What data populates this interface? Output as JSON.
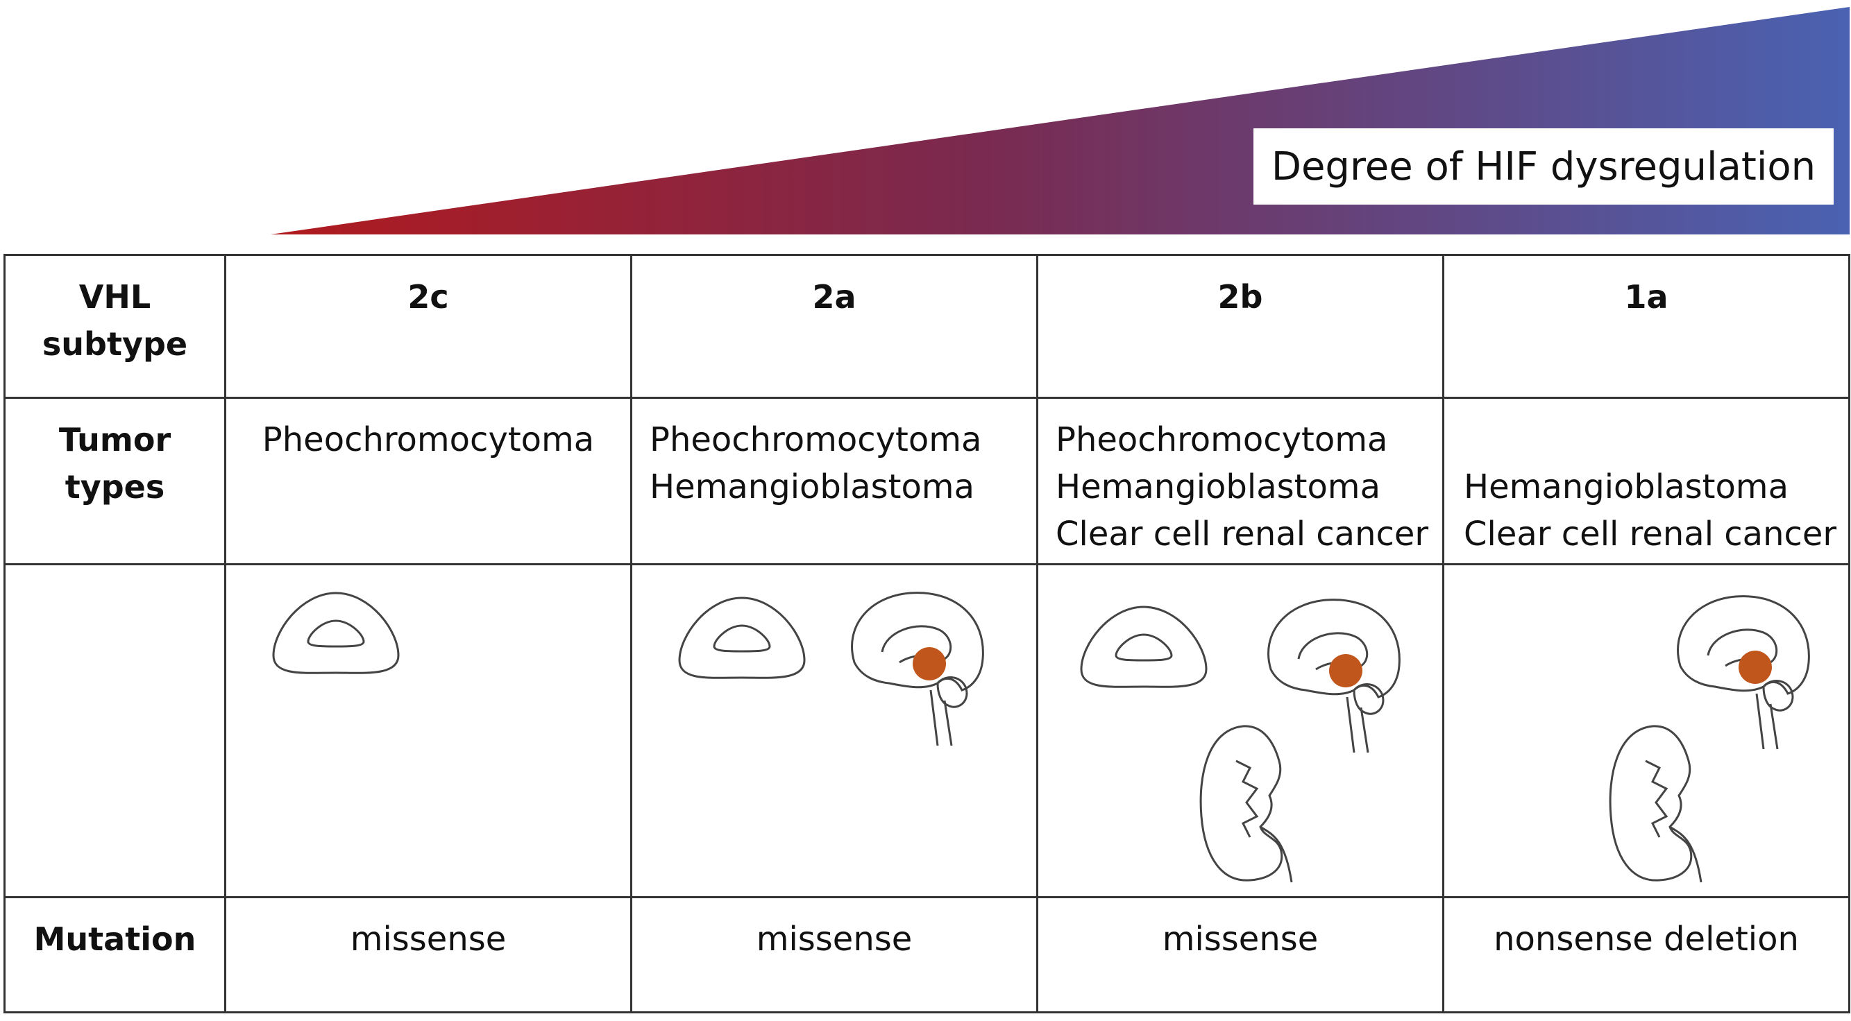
{
  "gradient": {
    "label": "Degree of HIF dysregulation",
    "start_color": "#b01a1e",
    "end_color": "#4a62b2"
  },
  "table": {
    "row_headers": {
      "subtype": "VHL subtype",
      "tumor": "Tumor types",
      "mutation": "Mutation"
    },
    "columns": [
      {
        "subtype": "2c",
        "tumors": [
          "Pheochromocytoma"
        ],
        "organs": [
          "adrenal-icon"
        ],
        "mutation": "missense"
      },
      {
        "subtype": "2a",
        "tumors": [
          "Pheochromocytoma",
          "Hemangioblastoma"
        ],
        "organs": [
          "adrenal-icon",
          "brain-icon"
        ],
        "mutation": "missense"
      },
      {
        "subtype": "2b",
        "tumors": [
          "Pheochromocytoma",
          "Hemangioblastoma",
          "Clear cell renal cancer"
        ],
        "organs": [
          "adrenal-icon",
          "brain-icon",
          "kidney-icon"
        ],
        "mutation": "missense"
      },
      {
        "subtype": "1a",
        "tumors": [
          "Hemangioblastoma",
          "Clear cell renal cancer"
        ],
        "organs": [
          "brain-icon",
          "kidney-icon"
        ],
        "mutation": "nonsense deletion"
      }
    ],
    "tumor_marker_color": "#c0561c"
  }
}
